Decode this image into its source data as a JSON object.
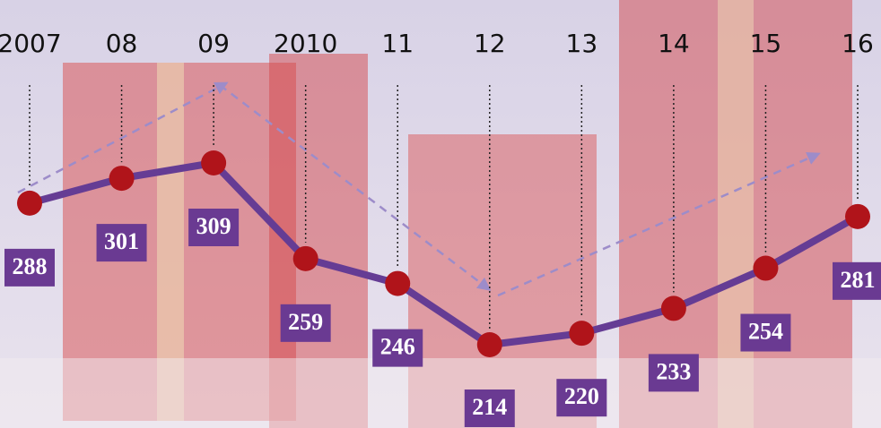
{
  "chart_data": {
    "type": "line",
    "categories": [
      "2007",
      "08",
      "09",
      "2010",
      "11",
      "12",
      "13",
      "14",
      "15",
      "16"
    ],
    "values": [
      288,
      301,
      309,
      259,
      246,
      214,
      220,
      233,
      254,
      281
    ],
    "color": "#653c94",
    "marker_color": "#b0141a",
    "label_color": "#6a3a92"
  }
}
